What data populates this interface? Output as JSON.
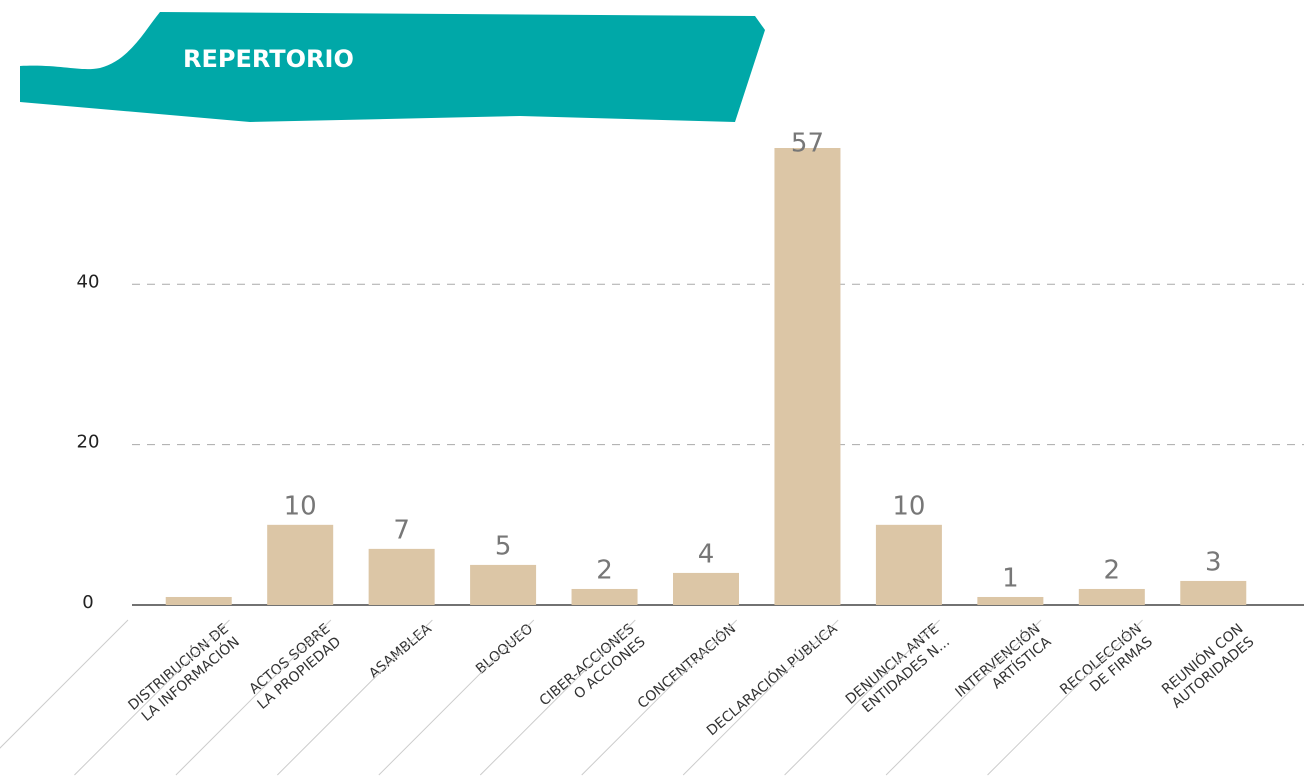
{
  "chart_data": {
    "type": "bar",
    "title": "REPERTORIO",
    "categories": [
      [
        "DISTRIBUCIÓN DE",
        "LA INFORMACIÓN"
      ],
      [
        "ACTOS SOBRE",
        "LA PROPIEDAD"
      ],
      [
        "ASAMBLEA"
      ],
      [
        "BLOQUEO"
      ],
      [
        "CIBER-ACCIONES",
        "O ACCIONES"
      ],
      [
        "CONCENTRACIÓN"
      ],
      [
        "DECLARACIÓN PÚBLICA"
      ],
      [
        "DENUNCIA ANTE",
        "ENTIDADES N..."
      ],
      [
        "INTERVENCIÓN",
        "ARTÍSTICA"
      ],
      [
        "RECOLECCIÓN",
        "DE FIRMAS"
      ],
      [
        "REUNIÓN CON",
        "AUTORIDADES"
      ]
    ],
    "values": [
      1,
      10,
      7,
      5,
      2,
      4,
      57,
      10,
      1,
      2,
      3
    ],
    "value_labels": [
      null,
      "10",
      "7",
      "5",
      "2",
      "4",
      "57",
      "10",
      "1",
      "2",
      "3"
    ],
    "color": "#dcc6a6",
    "ylim": [
      0,
      57
    ],
    "yticks": [
      0,
      20,
      40
    ],
    "grid": true
  }
}
